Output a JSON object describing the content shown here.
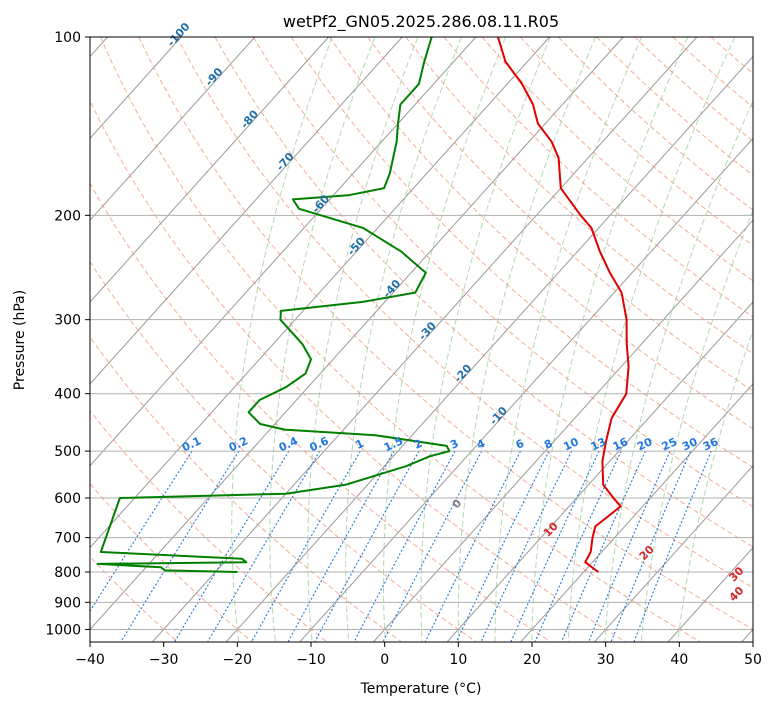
{
  "chart_data": {
    "type": "line",
    "chart_kind": "skew-t log-p",
    "title": "wetPf2_GN05.2025.286.08.11.R05",
    "xlabel": "Temperature (°C)",
    "ylabel": "Pressure (hPa)",
    "xlim": [
      -40,
      50
    ],
    "ylim": [
      1050,
      100
    ],
    "y_scale": "log",
    "grid": true,
    "x_ticks": [
      -40,
      -30,
      -20,
      -10,
      0,
      10,
      20,
      30,
      40,
      50
    ],
    "x_tick_labels": [
      "−40",
      "−30",
      "−20",
      "−10",
      "0",
      "10",
      "20",
      "30",
      "40",
      "50"
    ],
    "y_ticks": [
      100,
      200,
      300,
      400,
      500,
      600,
      700,
      800,
      900,
      1000
    ],
    "y_tick_labels": [
      "100",
      "200",
      "300",
      "400",
      "500",
      "600",
      "700",
      "800",
      "900",
      "1000"
    ],
    "series": [
      {
        "color": "#e00000",
        "points": [
          [
            800,
            22
          ],
          [
            790,
            21
          ],
          [
            770,
            19
          ],
          [
            740,
            18.5
          ],
          [
            700,
            17
          ],
          [
            670,
            16
          ],
          [
            645,
            16.5
          ],
          [
            620,
            17
          ],
          [
            600,
            15
          ],
          [
            570,
            12
          ],
          [
            520,
            9
          ],
          [
            480,
            7
          ],
          [
            440,
            5
          ],
          [
            400,
            4
          ],
          [
            360,
            1
          ],
          [
            330,
            -2
          ],
          [
            300,
            -5
          ],
          [
            270,
            -9
          ],
          [
            250,
            -13
          ],
          [
            230,
            -17
          ],
          [
            210,
            -21
          ],
          [
            200,
            -24
          ],
          [
            180,
            -30
          ],
          [
            160,
            -34
          ],
          [
            150,
            -37
          ],
          [
            140,
            -41
          ],
          [
            130,
            -44
          ],
          [
            120,
            -48
          ],
          [
            110,
            -53
          ],
          [
            100,
            -57
          ]
        ]
      },
      {
        "color": "#008000",
        "points": [
          [
            800,
            -27
          ],
          [
            795,
            -37
          ],
          [
            785,
            -38
          ],
          [
            775,
            -47
          ],
          [
            770,
            -27
          ],
          [
            760,
            -28
          ],
          [
            740,
            -48
          ],
          [
            600,
            -52
          ],
          [
            590,
            -30
          ],
          [
            570,
            -23
          ],
          [
            530,
            -17
          ],
          [
            510,
            -15
          ],
          [
            500,
            -13
          ],
          [
            490,
            -14
          ],
          [
            470,
            -25
          ],
          [
            460,
            -38
          ],
          [
            450,
            -42
          ],
          [
            430,
            -45
          ],
          [
            410,
            -45
          ],
          [
            390,
            -43
          ],
          [
            370,
            -42
          ],
          [
            350,
            -43
          ],
          [
            330,
            -46
          ],
          [
            300,
            -52
          ],
          [
            290,
            -53
          ],
          [
            280,
            -43
          ],
          [
            270,
            -37
          ],
          [
            250,
            -38
          ],
          [
            230,
            -44
          ],
          [
            210,
            -52
          ],
          [
            195,
            -63
          ],
          [
            188,
            -65
          ],
          [
            185,
            -58
          ],
          [
            180,
            -54
          ],
          [
            170,
            -55
          ],
          [
            150,
            -58
          ],
          [
            140,
            -60
          ],
          [
            130,
            -62
          ],
          [
            120,
            -62
          ],
          [
            110,
            -64
          ],
          [
            100,
            -66
          ]
        ]
      }
    ],
    "dry_adiabat_label_values": [
      "0",
      "10",
      "20",
      "30",
      "40"
    ],
    "isotherm_label_values": [
      "-100",
      "-90",
      "-80",
      "-70",
      "-60",
      "-50",
      "-40",
      "-30",
      "-20",
      "-10"
    ],
    "mixing_ratio_label_values": [
      "0.1",
      "0.2",
      "0.4",
      "0.6",
      "1",
      "1.5",
      "2",
      "3",
      "4",
      "6",
      "8",
      "10",
      "13",
      "16",
      "20",
      "25",
      "30",
      "36"
    ],
    "colors": {
      "temperature": "#e00000",
      "dewpoint": "#008000",
      "isotherm": "#9a9a9a",
      "dry_adiabat": "#f08a6a",
      "moist_adiabat": "#7fbf7f",
      "mixing_ratio": "#1f77e0",
      "isotherm_label": "#1f6fa8",
      "dry_adiabat_label": "#d62728",
      "moist_label": "#808080"
    }
  }
}
